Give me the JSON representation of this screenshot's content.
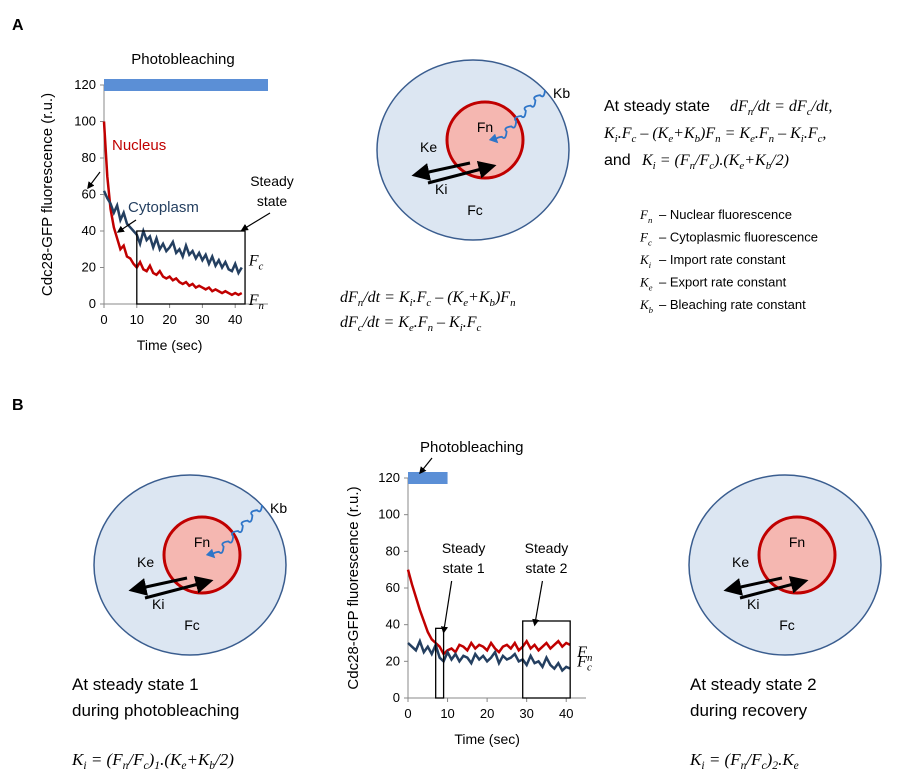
{
  "panel_labels": [
    "A",
    "B"
  ],
  "chart_data": [
    {
      "type": "line",
      "title": "Photobleaching",
      "x_label": "Time (sec)",
      "y_label": "Cdc28-GFP fluorescence (r.u.)",
      "xlim": [
        0,
        50
      ],
      "ylim": [
        0,
        120
      ],
      "xticks": [
        0,
        10,
        20,
        30,
        40
      ],
      "yticks": [
        0,
        20,
        40,
        60,
        80,
        100,
        120
      ],
      "bleach_interval": [
        0,
        50
      ],
      "bleach_color": "#5b8fd6",
      "x": [
        0,
        1,
        2,
        3,
        4,
        5,
        6,
        7,
        8,
        9,
        10,
        11,
        12,
        13,
        14,
        15,
        16,
        17,
        18,
        19,
        20,
        21,
        22,
        23,
        24,
        25,
        26,
        27,
        28,
        29,
        30,
        31,
        32,
        33,
        34,
        35,
        36,
        37,
        38,
        39,
        40,
        41,
        42
      ],
      "series": [
        {
          "name": "Nucleus",
          "color": "#c00000",
          "values": [
            100,
            70,
            52,
            42,
            36,
            30,
            32,
            26,
            25,
            22,
            20,
            23,
            19,
            18,
            21,
            17,
            16,
            18,
            15,
            14,
            15,
            13,
            14,
            12,
            11,
            12,
            10,
            11,
            9,
            10,
            9,
            8,
            9,
            7,
            8,
            7,
            6,
            7,
            6,
            5,
            6,
            5,
            6
          ],
          "end_label": [
            "F",
            "n"
          ]
        },
        {
          "name": "Cytoplasm",
          "color": "#243f60",
          "values": [
            62,
            58,
            55,
            50,
            54,
            46,
            50,
            44,
            42,
            40,
            38,
            33,
            40,
            35,
            37,
            31,
            36,
            30,
            33,
            29,
            31,
            34,
            28,
            30,
            26,
            32,
            27,
            29,
            25,
            28,
            24,
            27,
            22,
            26,
            21,
            24,
            20,
            23,
            19,
            18,
            22,
            17,
            20
          ],
          "end_label": [
            "F",
            "c"
          ]
        }
      ],
      "boxes": [
        {
          "text": [
            "Steady",
            "state"
          ],
          "x": [
            10,
            43
          ],
          "y": [
            0,
            40
          ]
        }
      ]
    },
    {
      "type": "line",
      "title": "Photobleaching",
      "x_label": "Time (sec)",
      "y_label": "Cdc28-GFP fluorescence (r.u.)",
      "xlim": [
        0,
        45
      ],
      "ylim": [
        0,
        120
      ],
      "xticks": [
        0,
        10,
        20,
        30,
        40
      ],
      "yticks": [
        0,
        20,
        40,
        60,
        80,
        100,
        120
      ],
      "bleach_interval": [
        0,
        10
      ],
      "bleach_color": "#5b8fd6",
      "x": [
        0,
        1,
        2,
        3,
        4,
        5,
        6,
        7,
        8,
        9,
        10,
        11,
        12,
        13,
        14,
        15,
        16,
        17,
        18,
        19,
        20,
        21,
        22,
        23,
        24,
        25,
        26,
        27,
        28,
        29,
        30,
        31,
        32,
        33,
        34,
        35,
        36,
        37,
        38,
        39,
        40,
        41
      ],
      "series": [
        {
          "name": "Nucleus",
          "color": "#c00000",
          "values": [
            70,
            62,
            55,
            48,
            42,
            36,
            32,
            30,
            28,
            24,
            26,
            27,
            25,
            29,
            28,
            26,
            30,
            27,
            29,
            28,
            26,
            30,
            27,
            25,
            28,
            29,
            27,
            30,
            26,
            28,
            31,
            27,
            29,
            26,
            28,
            30,
            27,
            29,
            31,
            28,
            30,
            29
          ],
          "end_label": [
            "F",
            "n"
          ]
        },
        {
          "name": "Cytoplasm",
          "color": "#243f60",
          "values": [
            30,
            28,
            26,
            31,
            25,
            28,
            24,
            29,
            22,
            20,
            25,
            21,
            24,
            20,
            23,
            22,
            19,
            24,
            21,
            23,
            20,
            22,
            25,
            19,
            23,
            21,
            22,
            24,
            20,
            21,
            18,
            23,
            19,
            20,
            17,
            22,
            18,
            16,
            19,
            15,
            17,
            16
          ],
          "end_label": [
            "F",
            "c"
          ]
        }
      ],
      "boxes": [
        {
          "text": [
            "Steady",
            "state 1"
          ],
          "x": [
            7,
            9
          ],
          "y": [
            0,
            38
          ]
        },
        {
          "text": [
            "Steady",
            "state 2"
          ],
          "x": [
            29,
            41
          ],
          "y": [
            0,
            42
          ]
        }
      ]
    }
  ],
  "diagram_labels": {
    "fn": "Fn",
    "fc": "Fc",
    "ke": "Ke",
    "ki": "Ki",
    "kb": "Kb"
  },
  "model_equations": [
    [
      "dF",
      "n",
      "/dt = K",
      "i",
      ".F",
      "c",
      " – (K",
      "e",
      "+K",
      "b",
      ")F",
      "n"
    ],
    [
      "dF",
      "c",
      "/dt = K",
      "e",
      ".F",
      "n",
      " – K",
      "i",
      ".F",
      "c"
    ]
  ],
  "steady_state": {
    "intro": "At steady state",
    "eq1": [
      "dF",
      "n",
      "/dt = dF",
      "c",
      "/dt,"
    ],
    "eq2": [
      "K",
      "i",
      ".F",
      "c",
      " – (K",
      "e",
      "+K",
      "b",
      ")F",
      "n",
      " = K",
      "e",
      ".F",
      "n",
      " – K",
      "i",
      ".F",
      "c",
      ","
    ],
    "and": "and",
    "eq3": [
      "K",
      "i",
      " = (F",
      "n",
      "/F",
      "c",
      ").(K",
      "e",
      "+K",
      "b",
      "/2)"
    ]
  },
  "legend": [
    {
      "symbol": [
        "F",
        "n"
      ],
      "text": "– Nuclear fluorescence"
    },
    {
      "symbol": [
        "F",
        "c"
      ],
      "text": "– Cytoplasmic fluorescence"
    },
    {
      "symbol": [
        "K",
        "i"
      ],
      "text": "– Import rate constant"
    },
    {
      "symbol": [
        "K",
        "e"
      ],
      "text": "– Export rate constant"
    },
    {
      "symbol": [
        "K",
        "b"
      ],
      "text": "– Bleaching rate constant"
    }
  ],
  "case1": {
    "lines": [
      "At steady state 1",
      "during photobleaching"
    ],
    "equation": [
      "K",
      "i",
      " = (F",
      "n",
      "/F",
      "c",
      ")",
      "1",
      ".(K",
      "e",
      "+K",
      "b",
      "/2)"
    ]
  },
  "case2": {
    "lines": [
      "At steady state 2",
      "during recovery"
    ],
    "equation": [
      "K",
      "i",
      " = (F",
      "n",
      "/F",
      "c",
      ")",
      "2",
      ".K",
      "e"
    ]
  }
}
